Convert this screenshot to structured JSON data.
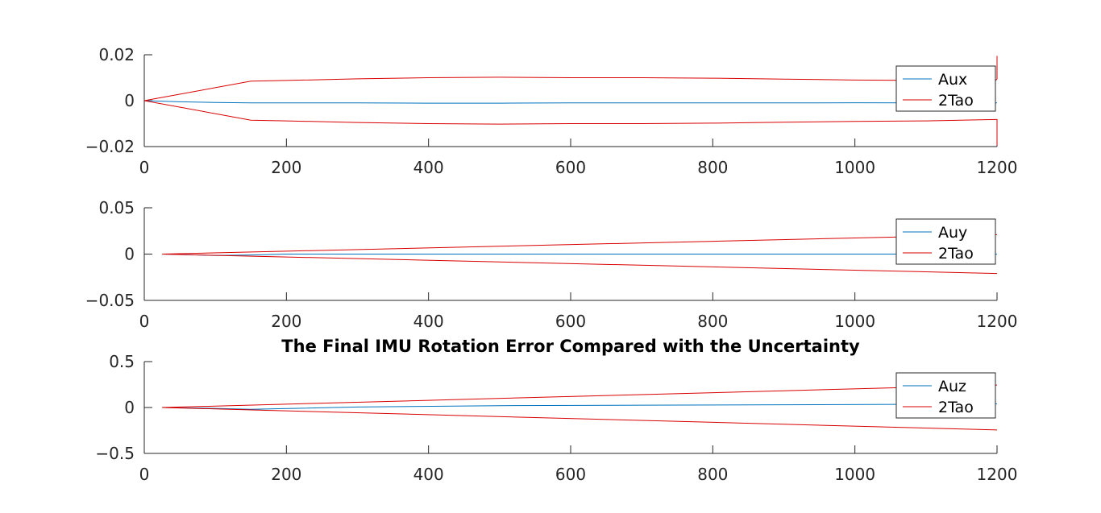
{
  "chart_data": [
    {
      "type": "line",
      "title": "",
      "xlim": [
        0,
        1200
      ],
      "ylim": [
        -0.02,
        0.02
      ],
      "xticks": [
        0,
        200,
        400,
        600,
        800,
        1000,
        1200
      ],
      "xtick_labels": [
        "0",
        "200",
        "400",
        "600",
        "800",
        "1000",
        "1200"
      ],
      "yticks": [
        0.02,
        0,
        -0.02
      ],
      "ytick_labels": [
        "0.02",
        "0",
        "−0.02"
      ],
      "legend_position": "top-right",
      "series": [
        {
          "name": "Aux",
          "color": "#0072BD",
          "x": [
            0,
            50,
            100,
            150,
            200,
            300,
            400,
            500,
            600,
            700,
            800,
            900,
            1000,
            1100,
            1200
          ],
          "y": [
            0,
            -0.0005,
            -0.0008,
            -0.001,
            -0.001,
            -0.001,
            -0.0011,
            -0.0011,
            -0.001,
            -0.001,
            -0.001,
            -0.001,
            -0.0009,
            -0.001,
            -0.001
          ]
        },
        {
          "name": "2Tao",
          "color": "#D90000",
          "x": [
            0,
            150,
            200,
            300,
            400,
            500,
            600,
            700,
            800,
            900,
            1000,
            1100,
            1198,
            1200,
            1200
          ],
          "y": [
            0,
            0.0085,
            0.0088,
            0.0095,
            0.01,
            0.0102,
            0.01,
            0.01,
            0.0098,
            0.0094,
            0.009,
            0.0088,
            0.0088,
            0.0095,
            0.0195
          ]
        },
        {
          "name": "",
          "color": "#D90000",
          "x": [
            0,
            150,
            200,
            300,
            400,
            500,
            600,
            700,
            800,
            900,
            1000,
            1100,
            1198,
            1200,
            1200
          ],
          "y": [
            0,
            -0.0085,
            -0.0088,
            -0.0095,
            -0.01,
            -0.0102,
            -0.01,
            -0.01,
            -0.0098,
            -0.0094,
            -0.009,
            -0.0088,
            -0.0082,
            -0.0082,
            -0.0195
          ]
        }
      ],
      "legend": [
        "Aux",
        "2Tao"
      ]
    },
    {
      "type": "line",
      "title": "",
      "xlim": [
        0,
        1200
      ],
      "ylim": [
        -0.05,
        0.05
      ],
      "xticks": [
        0,
        200,
        400,
        600,
        800,
        1000,
        1200
      ],
      "xtick_labels": [
        "0",
        "200",
        "400",
        "600",
        "800",
        "1000",
        "1200"
      ],
      "yticks": [
        0.05,
        0,
        -0.05
      ],
      "ytick_labels": [
        "0.05",
        "0",
        "−0.05"
      ],
      "legend_position": "top-right",
      "series": [
        {
          "name": "Auy",
          "color": "#0072BD",
          "x": [
            25,
            100,
            150,
            200,
            400,
            600,
            800,
            1000,
            1200
          ],
          "y": [
            0,
            -0.0015,
            -0.001,
            0,
            0,
            0,
            0,
            0,
            0
          ]
        },
        {
          "name": "2Tao",
          "color": "#D90000",
          "x": [
            25,
            1200
          ],
          "y": [
            0,
            0.021
          ]
        },
        {
          "name": "",
          "color": "#D90000",
          "x": [
            25,
            1200
          ],
          "y": [
            0,
            -0.021
          ]
        }
      ],
      "legend": [
        "Auy",
        "2Tao"
      ]
    },
    {
      "type": "line",
      "title": "The Final IMU Rotation Error Compared with the Uncertainty",
      "xlim": [
        0,
        1200
      ],
      "ylim": [
        -0.5,
        0.5
      ],
      "xticks": [
        0,
        200,
        400,
        600,
        800,
        1000,
        1200
      ],
      "xtick_labels": [
        "0",
        "200",
        "400",
        "600",
        "800",
        "1000",
        "1200"
      ],
      "yticks": [
        0.5,
        0,
        -0.5
      ],
      "ytick_labels": [
        "0.5",
        "0",
        "−0.5"
      ],
      "legend_position": "top-right",
      "series": [
        {
          "name": "Auz",
          "color": "#0072BD",
          "x": [
            25,
            100,
            150,
            300,
            500,
            700,
            900,
            1100,
            1200
          ],
          "y": [
            0,
            -0.01,
            -0.02,
            0.005,
            0.02,
            0.025,
            0.03,
            0.035,
            0.04
          ]
        },
        {
          "name": "2Tao",
          "color": "#D90000",
          "x": [
            25,
            1200
          ],
          "y": [
            0,
            0.245
          ]
        },
        {
          "name": "",
          "color": "#D90000",
          "x": [
            25,
            1200
          ],
          "y": [
            0,
            -0.245
          ]
        }
      ],
      "legend": [
        "Auz",
        "2Tao"
      ]
    }
  ]
}
